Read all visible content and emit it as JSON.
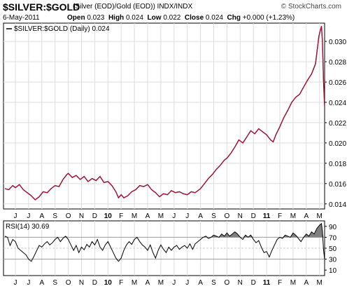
{
  "header": {
    "title": "$SILVER:$GOLD",
    "subtitle": "(Silver (EOD)/Gold (EOD))  INDX/INDX",
    "brand": "© StockCharts.com",
    "date": "6-May-2011",
    "open_label": "Open",
    "open": "0.023",
    "high_label": "High",
    "high": "0.024",
    "low_label": "Low",
    "low": "0.022",
    "close_label": "Close",
    "close": "0.024",
    "chg_label": "Chg",
    "chg": "+0.000 (+1.23%)"
  },
  "colors": {
    "price_line": "#cc0033",
    "price_line_dark": "#222222",
    "rsi_line": "#000000",
    "rsi_fill": "#808080",
    "grid": "#dddddd",
    "ref_line": "#999999"
  },
  "chart_data": [
    {
      "type": "line",
      "legend": "$SILVER:$GOLD (Daily) 0.024",
      "legend_placement": "top-left",
      "y_ticks": [
        "0.014",
        "0.016",
        "0.018",
        "0.020",
        "0.022",
        "0.024",
        "0.026",
        "0.028",
        "0.030"
      ],
      "ylim": [
        0.0135,
        0.0318
      ],
      "x_tick_labels": [
        "J",
        "J",
        "A",
        "S",
        "O",
        "N",
        "D",
        "10",
        "F",
        "M",
        "A",
        "M",
        "J",
        "J",
        "A",
        "S",
        "O",
        "N",
        "D",
        "11",
        "F",
        "M",
        "A",
        "M"
      ],
      "x_tick_bold": [
        false,
        false,
        false,
        false,
        false,
        false,
        false,
        true,
        false,
        false,
        false,
        false,
        false,
        false,
        false,
        false,
        false,
        false,
        false,
        true,
        false,
        false,
        false,
        false
      ],
      "x_months": [
        0,
        1,
        2,
        3,
        4,
        5,
        6,
        7,
        8,
        9,
        10,
        11,
        12,
        13,
        14,
        15,
        16,
        17,
        18,
        19,
        20,
        21,
        22,
        23
      ],
      "series": [
        {
          "points": [
            [
              -0.8,
              0.0155
            ],
            [
              -0.5,
              0.0154
            ],
            [
              -0.2,
              0.0158
            ],
            [
              0.0,
              0.0156
            ],
            [
              0.3,
              0.0159
            ],
            [
              0.6,
              0.0154
            ],
            [
              0.9,
              0.0151
            ],
            [
              1.2,
              0.0148
            ],
            [
              1.5,
              0.0144
            ],
            [
              1.8,
              0.0147
            ],
            [
              2.1,
              0.0152
            ],
            [
              2.4,
              0.0151
            ],
            [
              2.7,
              0.0155
            ],
            [
              3.0,
              0.0158
            ],
            [
              3.3,
              0.0157
            ],
            [
              3.6,
              0.0164
            ],
            [
              3.9,
              0.0169
            ],
            [
              4.0,
              0.017
            ],
            [
              4.3,
              0.0166
            ],
            [
              4.6,
              0.0168
            ],
            [
              4.9,
              0.0164
            ],
            [
              5.2,
              0.0167
            ],
            [
              5.5,
              0.0162
            ],
            [
              5.8,
              0.0165
            ],
            [
              6.1,
              0.0163
            ],
            [
              6.4,
              0.0167
            ],
            [
              6.7,
              0.0161
            ],
            [
              7.0,
              0.0162
            ],
            [
              7.3,
              0.0158
            ],
            [
              7.6,
              0.0152
            ],
            [
              7.8,
              0.0146
            ],
            [
              8.0,
              0.0149
            ],
            [
              8.2,
              0.0146
            ],
            [
              8.5,
              0.0148
            ],
            [
              8.8,
              0.0152
            ],
            [
              9.1,
              0.0154
            ],
            [
              9.4,
              0.0158
            ],
            [
              9.7,
              0.0157
            ],
            [
              10.0,
              0.0159
            ],
            [
              10.3,
              0.0154
            ],
            [
              10.6,
              0.0151
            ],
            [
              10.9,
              0.0147
            ],
            [
              11.2,
              0.015
            ],
            [
              11.5,
              0.0149
            ],
            [
              11.8,
              0.0153
            ],
            [
              12.1,
              0.0151
            ],
            [
              12.4,
              0.0152
            ],
            [
              12.7,
              0.015
            ],
            [
              13.0,
              0.0149
            ],
            [
              13.3,
              0.0152
            ],
            [
              13.6,
              0.0151
            ],
            [
              14.0,
              0.0155
            ],
            [
              14.3,
              0.016
            ],
            [
              14.6,
              0.0165
            ],
            [
              14.9,
              0.0169
            ],
            [
              15.2,
              0.0174
            ],
            [
              15.5,
              0.0178
            ],
            [
              15.8,
              0.0183
            ],
            [
              16.0,
              0.0185
            ],
            [
              16.3,
              0.019
            ],
            [
              16.6,
              0.0196
            ],
            [
              16.9,
              0.0203
            ],
            [
              17.2,
              0.02
            ],
            [
              17.5,
              0.0206
            ],
            [
              17.8,
              0.0212
            ],
            [
              18.1,
              0.0209
            ],
            [
              18.4,
              0.0214
            ],
            [
              18.7,
              0.0211
            ],
            [
              19.0,
              0.0208
            ],
            [
              19.3,
              0.0203
            ],
            [
              19.5,
              0.0201
            ],
            [
              19.7,
              0.0208
            ],
            [
              20.0,
              0.0216
            ],
            [
              20.3,
              0.0225
            ],
            [
              20.6,
              0.0232
            ],
            [
              20.9,
              0.024
            ],
            [
              21.2,
              0.0245
            ],
            [
              21.5,
              0.0248
            ],
            [
              21.8,
              0.0255
            ],
            [
              22.1,
              0.0262
            ],
            [
              22.4,
              0.0268
            ],
            [
              22.7,
              0.0278
            ],
            [
              22.95,
              0.0305
            ],
            [
              23.05,
              0.031
            ],
            [
              23.15,
              0.0315
            ],
            [
              23.22,
              0.03
            ],
            [
              23.3,
              0.0262
            ],
            [
              23.38,
              0.0237
            ]
          ]
        }
      ]
    },
    {
      "type": "line",
      "legend": "RSI(14) 30.69",
      "legend_placement": "top-left",
      "y_ticks": [
        "10",
        "30",
        "50",
        "70",
        "90"
      ],
      "ylim": [
        0,
        100
      ],
      "reference_lines": [
        30,
        70
      ],
      "fill_above": 70,
      "series": [
        {
          "points": [
            [
              -0.8,
              72
            ],
            [
              -0.6,
              70
            ],
            [
              -0.4,
              55
            ],
            [
              -0.2,
              66
            ],
            [
              0.0,
              62
            ],
            [
              0.2,
              50
            ],
            [
              0.4,
              46
            ],
            [
              0.6,
              42
            ],
            [
              0.8,
              38
            ],
            [
              1.0,
              30
            ],
            [
              1.2,
              26
            ],
            [
              1.4,
              35
            ],
            [
              1.6,
              45
            ],
            [
              1.8,
              55
            ],
            [
              2.0,
              52
            ],
            [
              2.2,
              58
            ],
            [
              2.4,
              62
            ],
            [
              2.6,
              56
            ],
            [
              2.8,
              60
            ],
            [
              3.0,
              66
            ],
            [
              3.2,
              70
            ],
            [
              3.4,
              62
            ],
            [
              3.6,
              68
            ],
            [
              3.8,
              72
            ],
            [
              4.0,
              66
            ],
            [
              4.2,
              56
            ],
            [
              4.4,
              46
            ],
            [
              4.6,
              55
            ],
            [
              4.8,
              42
            ],
            [
              5.0,
              52
            ],
            [
              5.2,
              47
            ],
            [
              5.4,
              57
            ],
            [
              5.6,
              52
            ],
            [
              5.8,
              62
            ],
            [
              6.0,
              56
            ],
            [
              6.2,
              66
            ],
            [
              6.4,
              52
            ],
            [
              6.6,
              46
            ],
            [
              6.8,
              56
            ],
            [
              7.0,
              62
            ],
            [
              7.2,
              52
            ],
            [
              7.4,
              42
            ],
            [
              7.6,
              32
            ],
            [
              7.8,
              26
            ],
            [
              8.0,
              32
            ],
            [
              8.2,
              46
            ],
            [
              8.4,
              56
            ],
            [
              8.6,
              62
            ],
            [
              8.8,
              57
            ],
            [
              9.0,
              66
            ],
            [
              9.2,
              70
            ],
            [
              9.4,
              62
            ],
            [
              9.6,
              56
            ],
            [
              9.8,
              52
            ],
            [
              10.0,
              46
            ],
            [
              10.2,
              56
            ],
            [
              10.4,
              42
            ],
            [
              10.6,
              32
            ],
            [
              10.8,
              46
            ],
            [
              11.0,
              56
            ],
            [
              11.2,
              48
            ],
            [
              11.4,
              42
            ],
            [
              11.6,
              52
            ],
            [
              11.8,
              46
            ],
            [
              12.0,
              52
            ],
            [
              12.2,
              55
            ],
            [
              12.4,
              48
            ],
            [
              12.6,
              52
            ],
            [
              12.8,
              55
            ],
            [
              13.0,
              50
            ],
            [
              13.2,
              58
            ],
            [
              13.4,
              48
            ],
            [
              13.6,
              58
            ],
            [
              13.8,
              62
            ],
            [
              14.0,
              66
            ],
            [
              14.2,
              70
            ],
            [
              14.4,
              72
            ],
            [
              14.6,
              68
            ],
            [
              14.8,
              70
            ],
            [
              15.0,
              74
            ],
            [
              15.2,
              72
            ],
            [
              15.4,
              70
            ],
            [
              15.6,
              76
            ],
            [
              15.8,
              72
            ],
            [
              16.0,
              78
            ],
            [
              16.2,
              72
            ],
            [
              16.4,
              76
            ],
            [
              16.6,
              80
            ],
            [
              16.8,
              76
            ],
            [
              17.0,
              70
            ],
            [
              17.2,
              66
            ],
            [
              17.4,
              74
            ],
            [
              17.6,
              70
            ],
            [
              17.8,
              74
            ],
            [
              18.0,
              66
            ],
            [
              18.2,
              60
            ],
            [
              18.4,
              64
            ],
            [
              18.6,
              52
            ],
            [
              18.8,
              42
            ],
            [
              19.0,
              44
            ],
            [
              19.2,
              34
            ],
            [
              19.4,
              46
            ],
            [
              19.6,
              56
            ],
            [
              19.8,
              66
            ],
            [
              20.0,
              70
            ],
            [
              20.2,
              68
            ],
            [
              20.4,
              74
            ],
            [
              20.6,
              72
            ],
            [
              20.8,
              70
            ],
            [
              21.0,
              78
            ],
            [
              21.2,
              74
            ],
            [
              21.4,
              68
            ],
            [
              21.6,
              62
            ],
            [
              21.8,
              70
            ],
            [
              22.0,
              76
            ],
            [
              22.2,
              72
            ],
            [
              22.4,
              80
            ],
            [
              22.6,
              76
            ],
            [
              22.8,
              86
            ],
            [
              23.0,
              92
            ],
            [
              23.15,
              95
            ],
            [
              23.22,
              80
            ],
            [
              23.3,
              48
            ],
            [
              23.38,
              30
            ]
          ]
        }
      ]
    }
  ]
}
